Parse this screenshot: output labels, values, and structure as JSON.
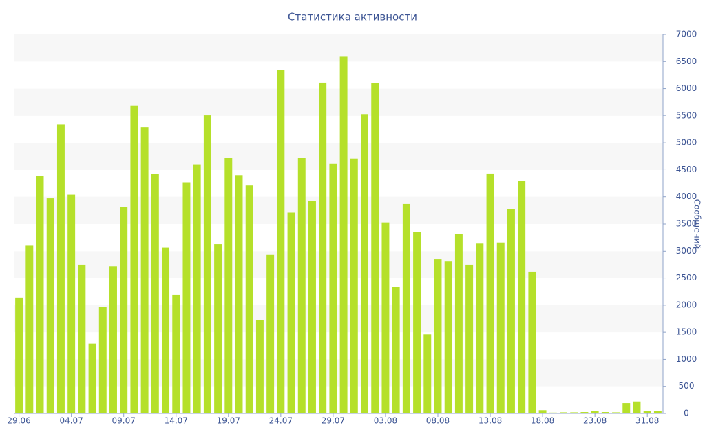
{
  "chart_data": {
    "type": "bar",
    "title": "Статистика активности",
    "y_label": "Сообщений",
    "categories": [
      "29.06",
      null,
      null,
      null,
      null,
      "04.07",
      null,
      null,
      null,
      null,
      "09.07",
      null,
      null,
      null,
      null,
      "14.07",
      null,
      null,
      null,
      null,
      "19.07",
      null,
      null,
      null,
      null,
      "24.07",
      null,
      null,
      null,
      null,
      "29.07",
      null,
      null,
      null,
      null,
      "03.08",
      null,
      null,
      null,
      null,
      "08.08",
      null,
      null,
      null,
      null,
      "13.08",
      null,
      null,
      null,
      null,
      "18.08",
      null,
      null,
      null,
      null,
      "23.08",
      null,
      null,
      null,
      null,
      "31.08",
      null
    ],
    "values": [
      2140,
      3100,
      4390,
      3970,
      5340,
      4040,
      2750,
      1290,
      1960,
      2720,
      3810,
      5680,
      5280,
      4420,
      3060,
      2190,
      4270,
      4600,
      5510,
      3130,
      4710,
      4400,
      4210,
      1720,
      2930,
      6350,
      3710,
      4720,
      3920,
      6110,
      4610,
      6600,
      4700,
      5520,
      6100,
      3530,
      2340,
      3870,
      3360,
      1460,
      2850,
      2810,
      3310,
      2750,
      3140,
      4430,
      3160,
      3770,
      4300,
      2610,
      60,
      15,
      20,
      20,
      25,
      40,
      25,
      20,
      190,
      220,
      40,
      40
    ],
    "color": "#b5e02a",
    "ylim": [
      0,
      7000
    ],
    "yticks": [
      0,
      500,
      1000,
      1500,
      2000,
      2500,
      3000,
      3500,
      4000,
      4500,
      5000,
      5500,
      6000,
      6500,
      7000
    ],
    "grid": true
  }
}
